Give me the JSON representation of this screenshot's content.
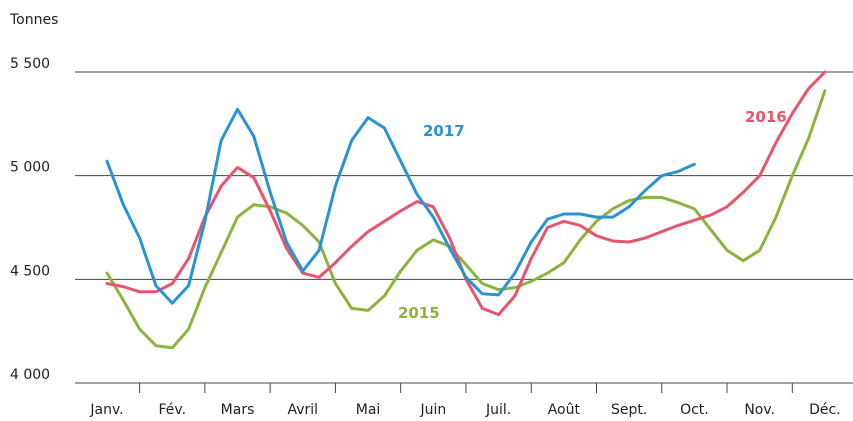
{
  "chart_data": {
    "type": "line",
    "y_label": "Tonnes",
    "x": [
      0,
      0.25,
      0.5,
      0.75,
      1,
      1.25,
      1.5,
      1.75,
      2,
      2.25,
      2.5,
      2.75,
      3,
      3.25,
      3.5,
      3.75,
      4,
      4.25,
      4.5,
      4.75,
      5,
      5.25,
      5.5,
      5.75,
      6,
      6.25,
      6.5,
      6.75,
      7,
      7.25,
      7.5,
      7.75,
      8,
      8.25,
      8.5,
      8.75,
      9,
      9.25,
      9.5,
      9.75,
      10,
      10.25,
      10.5,
      10.75,
      11
    ],
    "xlim": [
      -0.49,
      11.43
    ],
    "xticks": [
      {
        "value": 0,
        "label": "Janv."
      },
      {
        "value": 1,
        "label": "Fév."
      },
      {
        "value": 2,
        "label": "Mars"
      },
      {
        "value": 3,
        "label": "Avril"
      },
      {
        "value": 4,
        "label": "Mai"
      },
      {
        "value": 5,
        "label": "Juin"
      },
      {
        "value": 6,
        "label": "Juil."
      },
      {
        "value": 7,
        "label": "Août"
      },
      {
        "value": 8,
        "label": "Sept."
      },
      {
        "value": 9,
        "label": "Oct."
      },
      {
        "value": 10,
        "label": "Nov."
      },
      {
        "value": 11,
        "label": "Déc."
      }
    ],
    "ylim": [
      4000,
      5500
    ],
    "yticks": [
      {
        "value": 4000,
        "label": "4 000"
      },
      {
        "value": 4500,
        "label": "4 500"
      },
      {
        "value": 5000,
        "label": "5 000"
      },
      {
        "value": 5500,
        "label": "5 500"
      }
    ],
    "grid": true,
    "series": [
      {
        "name": "2015",
        "color": "#8db33f",
        "values": [
          4530,
          4400,
          4260,
          4180,
          4170,
          4260,
          4460,
          4630,
          4800,
          4860,
          4850,
          4820,
          4760,
          4680,
          4480,
          4360,
          4350,
          4420,
          4540,
          4640,
          4690,
          4660,
          4570,
          4480,
          4450,
          4460,
          4490,
          4530,
          4580,
          4690,
          4780,
          4840,
          4880,
          4895,
          4895,
          4870,
          4840,
          4740,
          4640,
          4590,
          4640,
          4800,
          5000,
          5180,
          5410
        ]
      },
      {
        "name": "2016",
        "color": "#e8546e",
        "values": [
          4480,
          4465,
          4440,
          4440,
          4480,
          4600,
          4800,
          4950,
          5040,
          4990,
          4830,
          4650,
          4530,
          4510,
          4580,
          4660,
          4730,
          4780,
          4830,
          4875,
          4850,
          4700,
          4500,
          4360,
          4330,
          4420,
          4600,
          4750,
          4780,
          4760,
          4710,
          4685,
          4680,
          4700,
          4730,
          4760,
          4785,
          4810,
          4850,
          4920,
          5000,
          5160,
          5300,
          5420,
          5500
        ]
      },
      {
        "name": "2017",
        "color": "#2b93d1",
        "values": [
          5070,
          4860,
          4700,
          4470,
          4385,
          4470,
          4780,
          5170,
          5320,
          5190,
          4920,
          4680,
          4540,
          4640,
          4950,
          5170,
          5280,
          5230,
          5070,
          4910,
          4800,
          4650,
          4510,
          4430,
          4425,
          4530,
          4680,
          4790,
          4815,
          4815,
          4800,
          4800,
          4850,
          4930,
          5000,
          5020,
          5055,
          null,
          null,
          null,
          null,
          null,
          null,
          null,
          null
        ]
      }
    ]
  }
}
